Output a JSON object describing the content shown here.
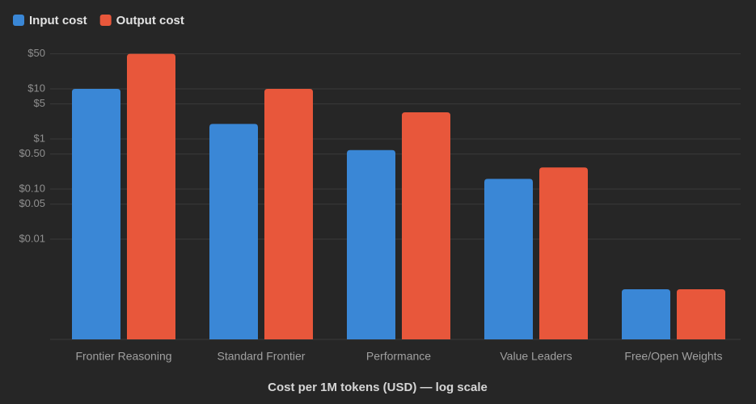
{
  "chart_data": {
    "type": "bar",
    "categories": [
      "Frontier Reasoning",
      "Standard Frontier",
      "Performance",
      "Value Leaders",
      "Free/Open Weights"
    ],
    "series": [
      {
        "name": "Input cost",
        "color": "#3a87d6",
        "values": [
          10,
          2,
          0.6,
          0.16,
          0.001
        ]
      },
      {
        "name": "Output cost",
        "color": "#e8573b",
        "values": [
          50,
          10,
          3.4,
          0.27,
          0.001
        ]
      }
    ],
    "x_label": "Cost per 1M tokens (USD) — log scale",
    "log_scale": true,
    "ylim": [
      0.0001,
      100
    ],
    "yticks": [
      {
        "value": 50,
        "label": "$50"
      },
      {
        "value": 10,
        "label": "$10"
      },
      {
        "value": 5,
        "label": "$5"
      },
      {
        "value": 1,
        "label": "$1"
      },
      {
        "value": 0.5,
        "label": "$0.50"
      },
      {
        "value": 0.1,
        "label": "$0.10"
      },
      {
        "value": 0.05,
        "label": "$0.05"
      },
      {
        "value": 0.01,
        "label": "$0.01"
      }
    ],
    "grid": true,
    "legend": "top-left"
  }
}
